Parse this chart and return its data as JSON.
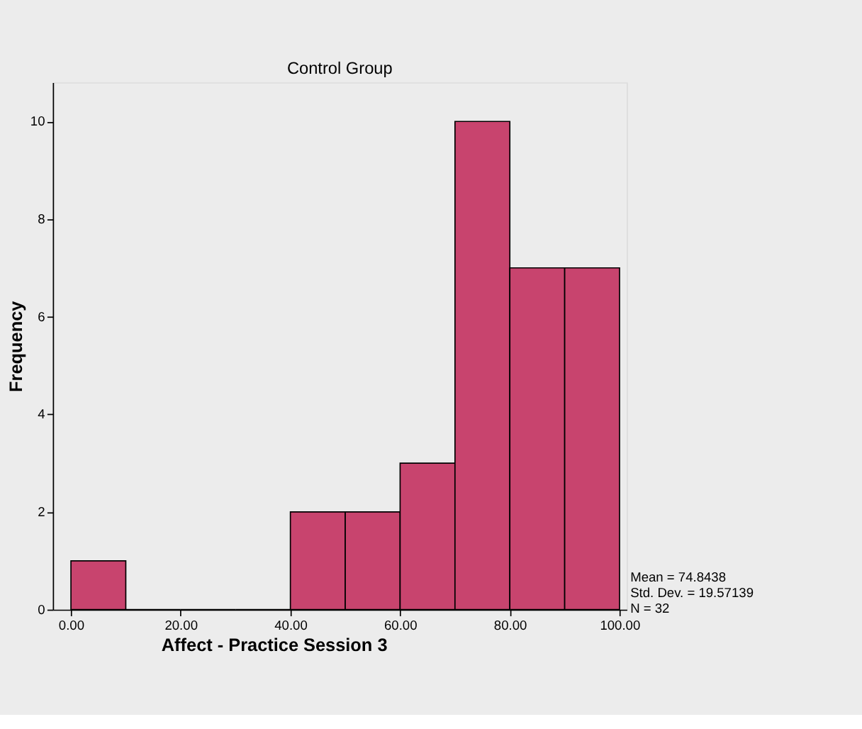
{
  "chart_data": {
    "type": "histogram",
    "title": "Control Group",
    "xlabel": "Affect - Practice Session 3",
    "ylabel": "Frequency",
    "bins": [
      0,
      10,
      20,
      30,
      40,
      50,
      60,
      70,
      80,
      90,
      100
    ],
    "values": [
      1,
      0,
      0,
      0,
      2,
      2,
      3,
      10,
      7,
      7
    ],
    "color": "#c8446e",
    "xlim": [
      -3.3,
      101.3
    ],
    "ylim": [
      0,
      10.8
    ],
    "xticks": [
      {
        "value": 0,
        "label": "0.00"
      },
      {
        "value": 20,
        "label": "20.00"
      },
      {
        "value": 40,
        "label": "40.00"
      },
      {
        "value": 60,
        "label": "60.00"
      },
      {
        "value": 80,
        "label": "80.00"
      },
      {
        "value": 100,
        "label": "100.00"
      }
    ],
    "yticks": [
      0,
      2,
      4,
      6,
      8,
      10
    ],
    "grid": false,
    "annotations": [
      "Mean = 74.8438",
      "Std. Dev. = 19.57139",
      "N = 32"
    ]
  }
}
